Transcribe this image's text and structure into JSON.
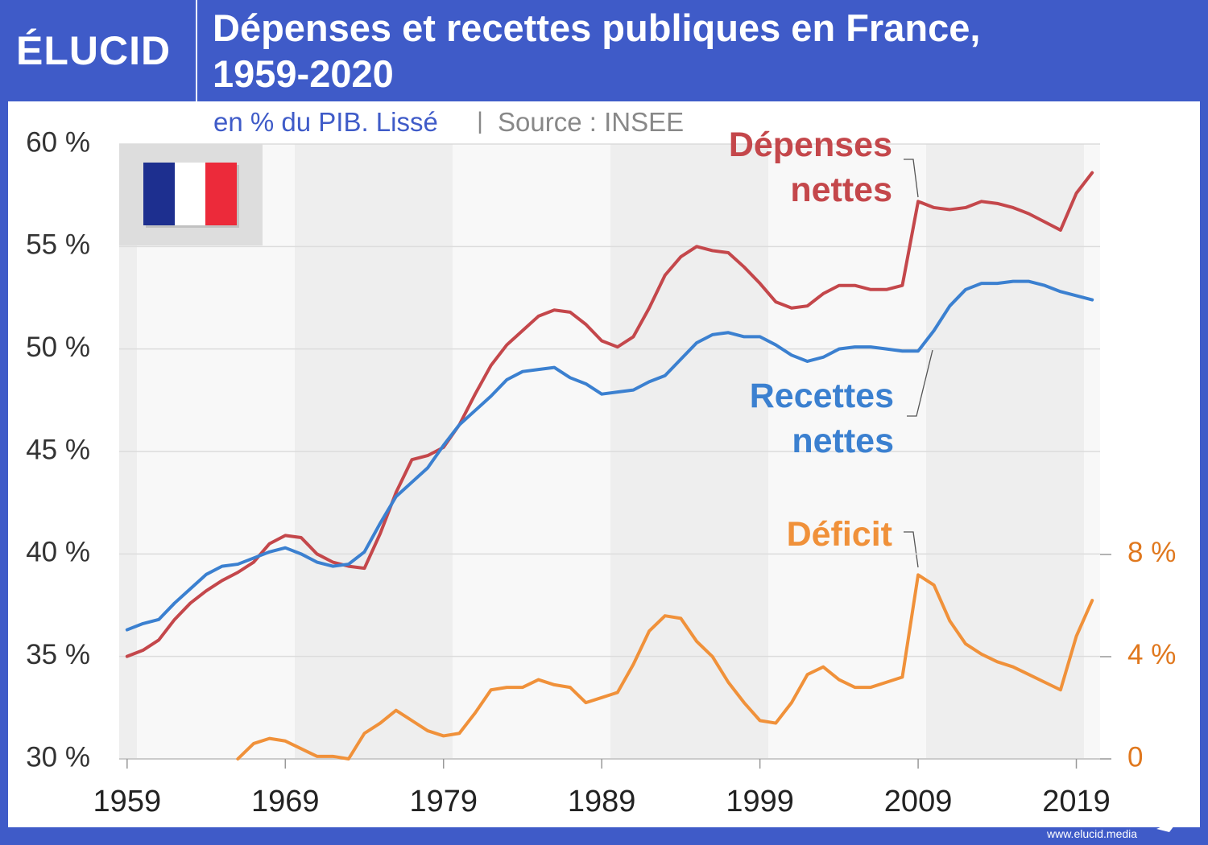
{
  "header": {
    "logo": "ÉLUCID",
    "footer": "www.elucid.media"
  },
  "chart_data": {
    "type": "line",
    "title": "Dépenses et recettes publiques en France, 1959-2020",
    "subtitle": "en % du PIB. Lissé",
    "source": "Source : INSEE",
    "x": [
      1959,
      1960,
      1961,
      1962,
      1963,
      1964,
      1965,
      1966,
      1967,
      1968,
      1969,
      1970,
      1971,
      1972,
      1973,
      1974,
      1975,
      1976,
      1977,
      1978,
      1979,
      1980,
      1981,
      1982,
      1983,
      1984,
      1985,
      1986,
      1987,
      1988,
      1989,
      1990,
      1991,
      1992,
      1993,
      1994,
      1995,
      1996,
      1997,
      1998,
      1999,
      2000,
      2001,
      2002,
      2003,
      2004,
      2005,
      2006,
      2007,
      2008,
      2009,
      2010,
      2011,
      2012,
      2013,
      2014,
      2015,
      2016,
      2017,
      2018,
      2019,
      2020
    ],
    "xlim": [
      1958.5,
      2020.5
    ],
    "xticks": [
      1959,
      1969,
      1979,
      1989,
      1999,
      2009,
      2019
    ],
    "ylim": [
      30,
      60
    ],
    "yticks": [
      {
        "value": 30,
        "label": "30 %"
      },
      {
        "value": 35,
        "label": "35 %"
      },
      {
        "value": 40,
        "label": "40 %"
      },
      {
        "value": 45,
        "label": "45 %"
      },
      {
        "value": 50,
        "label": "50 %"
      },
      {
        "value": 55,
        "label": "55 %"
      },
      {
        "value": 60,
        "label": "60 %"
      }
    ],
    "y2lim": [
      0,
      24.06
    ],
    "y2ticks": [
      0,
      {
        "value": 4,
        "label": "4 %"
      },
      {
        "value": 8,
        "label": "8 %"
      }
    ],
    "grid": true,
    "series": [
      {
        "name": "Dépenses nettes",
        "color": "#c4474b",
        "values": [
          35.0,
          35.3,
          35.8,
          36.8,
          37.6,
          38.2,
          38.7,
          39.1,
          39.6,
          40.5,
          40.9,
          40.8,
          40.0,
          39.6,
          39.4,
          39.3,
          41.0,
          43.0,
          44.6,
          44.8,
          45.2,
          46.3,
          47.8,
          49.2,
          50.2,
          50.9,
          51.6,
          51.9,
          51.8,
          51.2,
          50.4,
          50.1,
          50.6,
          52.0,
          53.6,
          54.5,
          55.0,
          54.8,
          54.7,
          54.0,
          53.2,
          52.3,
          52.0,
          52.1,
          52.7,
          53.1,
          53.1,
          52.9,
          52.9,
          53.1,
          57.2,
          56.9,
          56.8,
          56.9,
          57.2,
          57.1,
          56.9,
          56.6,
          56.2,
          55.8,
          57.6,
          58.6
        ]
      },
      {
        "name": "Recettes nettes",
        "color": "#3b80d0",
        "values": [
          36.3,
          36.6,
          36.8,
          37.6,
          38.3,
          39.0,
          39.4,
          39.5,
          39.8,
          40.1,
          40.3,
          40.0,
          39.6,
          39.4,
          39.5,
          40.1,
          41.5,
          42.8,
          43.5,
          44.2,
          45.3,
          46.3,
          47.0,
          47.7,
          48.5,
          48.9,
          49.0,
          49.1,
          48.6,
          48.3,
          47.8,
          47.9,
          48.0,
          48.4,
          48.7,
          49.5,
          50.3,
          50.7,
          50.8,
          50.6,
          50.6,
          50.2,
          49.7,
          49.4,
          49.6,
          50.0,
          50.1,
          50.1,
          50.0,
          49.9,
          49.9,
          50.9,
          52.1,
          52.9,
          53.2,
          53.2,
          53.3,
          53.3,
          53.1,
          52.8,
          52.6,
          52.4
        ]
      },
      {
        "name": "Déficit",
        "color": "#f0913a",
        "axis": "y2",
        "values": [
          null,
          null,
          null,
          null,
          null,
          null,
          null,
          0.0,
          0.6,
          0.8,
          0.7,
          0.4,
          0.1,
          0.1,
          0.0,
          1.0,
          1.4,
          1.9,
          1.5,
          1.1,
          0.9,
          1.0,
          1.8,
          2.7,
          2.8,
          2.8,
          3.1,
          2.9,
          2.8,
          2.2,
          2.4,
          2.6,
          3.7,
          5.0,
          5.6,
          5.5,
          4.6,
          4.0,
          3.0,
          2.2,
          1.5,
          1.4,
          2.2,
          3.3,
          3.6,
          3.1,
          2.8,
          2.8,
          3.0,
          3.2,
          7.2,
          6.8,
          5.4,
          4.5,
          4.1,
          3.8,
          3.6,
          3.3,
          3.0,
          2.7,
          4.8,
          6.2
        ]
      }
    ]
  }
}
